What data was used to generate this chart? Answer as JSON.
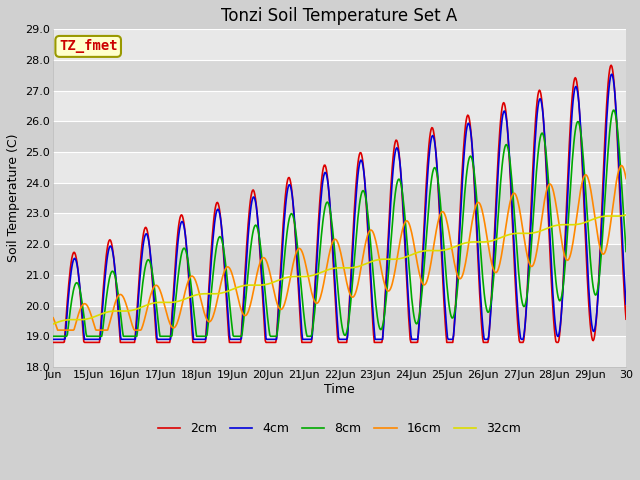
{
  "title": "Tonzi Soil Temperature Set A",
  "xlabel": "Time",
  "ylabel": "Soil Temperature (C)",
  "ylim": [
    18.0,
    29.0
  ],
  "yticks": [
    18.0,
    19.0,
    20.0,
    21.0,
    22.0,
    23.0,
    24.0,
    25.0,
    26.0,
    27.0,
    28.0,
    29.0
  ],
  "xtick_labels": [
    "Jun",
    "15Jun",
    "16Jun",
    "17Jun",
    "18Jun",
    "19Jun",
    "20Jun",
    "21Jun",
    "22Jun",
    "23Jun",
    "24Jun",
    "25Jun",
    "26Jun",
    "27Jun",
    "28Jun",
    "29Jun",
    "30"
  ],
  "colors": {
    "2cm": "#dd0000",
    "4cm": "#0000dd",
    "8cm": "#00aa00",
    "16cm": "#ff8800",
    "32cm": "#dddd00"
  },
  "legend_labels": [
    "2cm",
    "4cm",
    "8cm",
    "16cm",
    "32cm"
  ],
  "annotation_text": "TZ_fmet",
  "annotation_color": "#cc0000",
  "annotation_bg": "#ffffcc",
  "annotation_border": "#999900",
  "fig_bg": "#d0d0d0",
  "plot_bg": "#e8e8e8",
  "band_light": "#e8e8e8",
  "band_dark": "#d8d8d8",
  "grid_color": "#ffffff",
  "title_fontsize": 12,
  "axis_fontsize": 9,
  "tick_fontsize": 8,
  "legend_fontsize": 9,
  "line_width": 1.2,
  "n_days": 16,
  "points_per_day": 48
}
